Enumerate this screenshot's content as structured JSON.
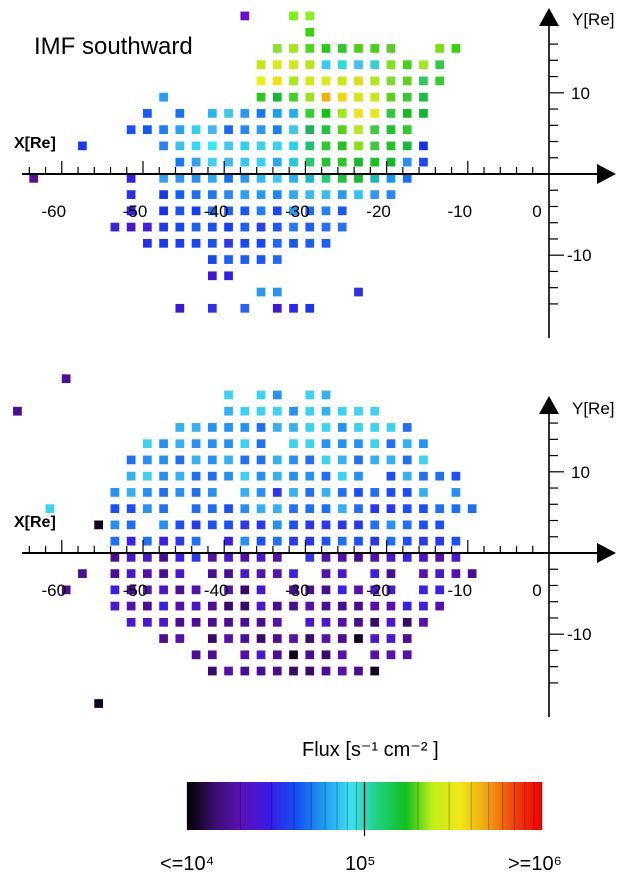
{
  "chart_data": [
    {
      "type": "heatmap",
      "title": "IMF southward",
      "xlabel": "X[Re]",
      "ylabel": "Y[Re]",
      "xlim": [
        -67,
        0
      ],
      "ylim": [
        -20,
        20
      ],
      "x_ticks": [
        -60,
        -50,
        -40,
        -30,
        -20,
        -10,
        0
      ],
      "y_ticks": [
        10,
        -10
      ],
      "cell_size_re": 2,
      "cells": [
        [
          -37,
          19,
          "#6a10c8"
        ],
        [
          -31,
          19,
          "#7cf010"
        ],
        [
          -29,
          19,
          "#8af020"
        ],
        [
          -29,
          17,
          "#3cd010"
        ],
        [
          -33,
          15,
          "#88e030"
        ],
        [
          -31,
          15,
          "#a0e820"
        ],
        [
          -29,
          15,
          "#4cd818"
        ],
        [
          -27,
          15,
          "#2cc818"
        ],
        [
          -25,
          15,
          "#30c828"
        ],
        [
          -23,
          15,
          "#50d010"
        ],
        [
          -21,
          15,
          "#46d018"
        ],
        [
          -19,
          15,
          "#60c830"
        ],
        [
          -11,
          15,
          "#3cd010"
        ],
        [
          -13,
          15,
          "#78e010"
        ],
        [
          -35,
          13,
          "#bfe618"
        ],
        [
          -33,
          13,
          "#d8ec18"
        ],
        [
          -31,
          13,
          "#cfe818"
        ],
        [
          -29,
          13,
          "#b8e418"
        ],
        [
          -27,
          13,
          "#38c9f0"
        ],
        [
          -25,
          13,
          "#2adcd8"
        ],
        [
          -23,
          13,
          "#40c0f0"
        ],
        [
          -21,
          13,
          "#36d0d0"
        ],
        [
          -19,
          13,
          "#80e020"
        ],
        [
          -17,
          13,
          "#48d018"
        ],
        [
          -15,
          13,
          "#a0e820"
        ],
        [
          -13,
          13,
          "#38c848"
        ],
        [
          -35,
          11,
          "#e8ee18"
        ],
        [
          -33,
          11,
          "#f0e010"
        ],
        [
          -31,
          11,
          "#a8e818"
        ],
        [
          -29,
          11,
          "#d0ea18"
        ],
        [
          -27,
          11,
          "#d8ea20"
        ],
        [
          -25,
          11,
          "#c8e818"
        ],
        [
          -23,
          11,
          "#e0e018"
        ],
        [
          -21,
          11,
          "#b0e818"
        ],
        [
          -19,
          11,
          "#80d830"
        ],
        [
          -17,
          11,
          "#60d020"
        ],
        [
          -15,
          11,
          "#30c860"
        ],
        [
          -13,
          11,
          "#38cc30"
        ],
        [
          -47,
          9,
          "#2a9cf2"
        ],
        [
          -35,
          9,
          "#2cc820"
        ],
        [
          -33,
          9,
          "#18b438"
        ],
        [
          -31,
          9,
          "#40d020"
        ],
        [
          -29,
          9,
          "#a0e020"
        ],
        [
          -27,
          9,
          "#f0b010"
        ],
        [
          -25,
          9,
          "#f0d810"
        ],
        [
          -23,
          9,
          "#d0e818"
        ],
        [
          -21,
          9,
          "#c8e818"
        ],
        [
          -19,
          9,
          "#60d020"
        ],
        [
          -17,
          9,
          "#38c838"
        ],
        [
          -15,
          9,
          "#18c040"
        ],
        [
          -49,
          7,
          "#1a58f0"
        ],
        [
          -45,
          7,
          "#1870f4"
        ],
        [
          -41,
          7,
          "#28b6f0"
        ],
        [
          -39,
          7,
          "#40c8e0"
        ],
        [
          -37,
          7,
          "#2898f0"
        ],
        [
          -35,
          7,
          "#1878f0"
        ],
        [
          -33,
          7,
          "#18a0f0"
        ],
        [
          -31,
          7,
          "#20b0f0"
        ],
        [
          -29,
          7,
          "#30d030"
        ],
        [
          -27,
          7,
          "#18c010"
        ],
        [
          -25,
          7,
          "#a0e818"
        ],
        [
          -23,
          7,
          "#f0e020"
        ],
        [
          -21,
          7,
          "#e8e818"
        ],
        [
          -19,
          7,
          "#30c840"
        ],
        [
          -17,
          7,
          "#18b820"
        ],
        [
          -15,
          7,
          "#10b830"
        ],
        [
          -51,
          5,
          "#1c50f0"
        ],
        [
          -49,
          5,
          "#1458f0"
        ],
        [
          -47,
          5,
          "#2080f0"
        ],
        [
          -45,
          5,
          "#28a0f0"
        ],
        [
          -43,
          5,
          "#38d0e8"
        ],
        [
          -41,
          5,
          "#44b8f0"
        ],
        [
          -39,
          5,
          "#1c68f0"
        ],
        [
          -37,
          5,
          "#2888f0"
        ],
        [
          -35,
          5,
          "#2c98f0"
        ],
        [
          -33,
          5,
          "#1a80f0"
        ],
        [
          -31,
          5,
          "#38c8e8"
        ],
        [
          -29,
          5,
          "#20b060"
        ],
        [
          -27,
          5,
          "#28c040"
        ],
        [
          -25,
          5,
          "#58d018"
        ],
        [
          -23,
          5,
          "#b8e820"
        ],
        [
          -21,
          5,
          "#40c840"
        ],
        [
          -19,
          5,
          "#20c030"
        ],
        [
          -17,
          5,
          "#30c830"
        ],
        [
          -57,
          3,
          "#1a3ae8"
        ],
        [
          -47,
          3,
          "#2c80f0"
        ],
        [
          -45,
          3,
          "#40c0f0"
        ],
        [
          -43,
          3,
          "#38d8f0"
        ],
        [
          -41,
          3,
          "#38e8f0"
        ],
        [
          -39,
          3,
          "#44c8f0"
        ],
        [
          -37,
          3,
          "#30d0f0"
        ],
        [
          -35,
          3,
          "#40d0e8"
        ],
        [
          -33,
          3,
          "#38d0f0"
        ],
        [
          -31,
          3,
          "#2cd0e8"
        ],
        [
          -29,
          3,
          "#20c070"
        ],
        [
          -27,
          3,
          "#30c830"
        ],
        [
          -25,
          3,
          "#28c020"
        ],
        [
          -23,
          3,
          "#88e018"
        ],
        [
          -21,
          3,
          "#40c840"
        ],
        [
          -19,
          3,
          "#28c028"
        ],
        [
          -17,
          3,
          "#18b840"
        ],
        [
          -15,
          3,
          "#1830e8"
        ],
        [
          -45,
          1,
          "#1878f0"
        ],
        [
          -43,
          1,
          "#30a0f0"
        ],
        [
          -41,
          1,
          "#40d0f0"
        ],
        [
          -39,
          1,
          "#40b8f0"
        ],
        [
          -37,
          1,
          "#38c8f0"
        ],
        [
          -35,
          1,
          "#38d0f0"
        ],
        [
          -33,
          1,
          "#28a8f0"
        ],
        [
          -31,
          1,
          "#28c8d8"
        ],
        [
          -29,
          1,
          "#28c870"
        ],
        [
          -27,
          1,
          "#28c030"
        ],
        [
          -25,
          1,
          "#30c828"
        ],
        [
          -23,
          1,
          "#18b828"
        ],
        [
          -21,
          1,
          "#18c020"
        ],
        [
          -19,
          1,
          "#10b830"
        ],
        [
          -17,
          1,
          "#2890f0"
        ],
        [
          -15,
          1,
          "#1c48f0"
        ],
        [
          -63,
          -1,
          "#5a1090"
        ],
        [
          -51,
          -1,
          "#3020e0"
        ],
        [
          -47,
          -1,
          "#38a0f0"
        ],
        [
          -45,
          -1,
          "#2a98f0"
        ],
        [
          -43,
          -1,
          "#2890f0"
        ],
        [
          -41,
          -1,
          "#30a8f0"
        ],
        [
          -39,
          -1,
          "#1870f0"
        ],
        [
          -37,
          -1,
          "#2a98f0"
        ],
        [
          -35,
          -1,
          "#38b8f0"
        ],
        [
          -33,
          -1,
          "#40c8f0"
        ],
        [
          -31,
          -1,
          "#2ab0f0"
        ],
        [
          -29,
          -1,
          "#20b8c8"
        ],
        [
          -27,
          -1,
          "#2ac878"
        ],
        [
          -25,
          -1,
          "#20c040"
        ],
        [
          -23,
          -1,
          "#18b830"
        ],
        [
          -21,
          -1,
          "#20b8b0"
        ],
        [
          -19,
          -1,
          "#1898f0"
        ],
        [
          -17,
          -1,
          "#1870f0"
        ],
        [
          -51,
          -3,
          "#2a30e8"
        ],
        [
          -47,
          -3,
          "#1838e8"
        ],
        [
          -45,
          -3,
          "#1460f0"
        ],
        [
          -43,
          -3,
          "#2070f0"
        ],
        [
          -41,
          -3,
          "#1a78f0"
        ],
        [
          -39,
          -3,
          "#2888f0"
        ],
        [
          -37,
          -3,
          "#2ea0f0"
        ],
        [
          -35,
          -3,
          "#2a98f0"
        ],
        [
          -33,
          -3,
          "#1c88f0"
        ],
        [
          -31,
          -3,
          "#30a8f0"
        ],
        [
          -29,
          -3,
          "#3cb8f0"
        ],
        [
          -27,
          -3,
          "#40b8f0"
        ],
        [
          -25,
          -3,
          "#2a98f0"
        ],
        [
          -23,
          -3,
          "#38c0f0"
        ],
        [
          -21,
          -3,
          "#3098f0"
        ],
        [
          -19,
          -3,
          "#2888f0"
        ],
        [
          -51,
          -5,
          "#3a20e0"
        ],
        [
          -47,
          -5,
          "#1a30e8"
        ],
        [
          -45,
          -5,
          "#1850f0"
        ],
        [
          -43,
          -5,
          "#1440f0"
        ],
        [
          -41,
          -5,
          "#2070f0"
        ],
        [
          -39,
          -5,
          "#1c60f0"
        ],
        [
          -37,
          -5,
          "#1858f0"
        ],
        [
          -35,
          -5,
          "#2280f0"
        ],
        [
          -33,
          -5,
          "#1848f0"
        ],
        [
          -31,
          -5,
          "#2a98f0"
        ],
        [
          -29,
          -5,
          "#1c70f0"
        ],
        [
          -27,
          -5,
          "#2880f0"
        ],
        [
          -25,
          -5,
          "#1a58f0"
        ],
        [
          -53,
          -7,
          "#3a28d8"
        ],
        [
          -51,
          -7,
          "#4818c8"
        ],
        [
          -49,
          -7,
          "#4a20d8"
        ],
        [
          -47,
          -7,
          "#2238e8"
        ],
        [
          -45,
          -7,
          "#1a48f0"
        ],
        [
          -43,
          -7,
          "#2060f0"
        ],
        [
          -41,
          -7,
          "#1a50f0"
        ],
        [
          -39,
          -7,
          "#1840f0"
        ],
        [
          -37,
          -7,
          "#2060f0"
        ],
        [
          -35,
          -7,
          "#2c40e8"
        ],
        [
          -33,
          -7,
          "#1e58f0"
        ],
        [
          -31,
          -7,
          "#2878f0"
        ],
        [
          -29,
          -7,
          "#1c60f0"
        ],
        [
          -27,
          -7,
          "#2470f0"
        ],
        [
          -25,
          -7,
          "#2870f0"
        ],
        [
          -49,
          -9,
          "#2a30e8"
        ],
        [
          -47,
          -9,
          "#1c38e8"
        ],
        [
          -45,
          -9,
          "#2040e8"
        ],
        [
          -43,
          -9,
          "#1c48f0"
        ],
        [
          -41,
          -9,
          "#1c50f0"
        ],
        [
          -39,
          -9,
          "#3038e8"
        ],
        [
          -37,
          -9,
          "#1c48f0"
        ],
        [
          -35,
          -9,
          "#1c48f0"
        ],
        [
          -33,
          -9,
          "#2068f0"
        ],
        [
          -31,
          -9,
          "#1858f0"
        ],
        [
          -29,
          -9,
          "#2060f0"
        ],
        [
          -27,
          -9,
          "#2060f0"
        ],
        [
          -41,
          -11,
          "#1a48f0"
        ],
        [
          -39,
          -11,
          "#1c60f0"
        ],
        [
          -37,
          -11,
          "#1c60f0"
        ],
        [
          -35,
          -11,
          "#1c58f0"
        ],
        [
          -33,
          -11,
          "#2068f0"
        ],
        [
          -41,
          -13,
          "#4018d0"
        ],
        [
          -39,
          -13,
          "#3020e0"
        ],
        [
          -35,
          -15,
          "#2c98f0"
        ],
        [
          -33,
          -15,
          "#2890f0"
        ],
        [
          -23,
          -15,
          "#3030e8"
        ],
        [
          -45,
          -17,
          "#4018d0"
        ],
        [
          -41,
          -17,
          "#2c30e8"
        ],
        [
          -37,
          -17,
          "#2a60f0"
        ],
        [
          -33,
          -17,
          "#4018d0"
        ],
        [
          -31,
          -17,
          "#3028e8"
        ],
        [
          -29,
          -17,
          "#1838e8"
        ]
      ]
    },
    {
      "type": "heatmap",
      "title": "",
      "xlabel": "X[Re]",
      "ylabel": "Y[Re]",
      "xlim": [
        -67,
        0
      ],
      "ylim": [
        -20,
        20
      ],
      "x_ticks": [
        -60,
        -50,
        -40,
        -30,
        -20,
        -10,
        0
      ],
      "y_ticks": [
        10,
        -10
      ],
      "cell_size_re": 2,
      "density_field": true
    }
  ],
  "colorbar": {
    "title": "Flux [s⁻¹ cm⁻² ]",
    "tick_low": "<=10⁴",
    "tick_mid": "10⁵",
    "tick_high": ">=10⁶",
    "min": 10000,
    "max": 1000000,
    "scale": "log",
    "colors": [
      "#000000",
      "#3a0f6e",
      "#5a12b4",
      "#3a1ae8",
      "#1450f0",
      "#1e9af0",
      "#40e0f0",
      "#20d080",
      "#10c020",
      "#c0ee18",
      "#f0e818",
      "#f0a010",
      "#f04010",
      "#f00000"
    ]
  }
}
